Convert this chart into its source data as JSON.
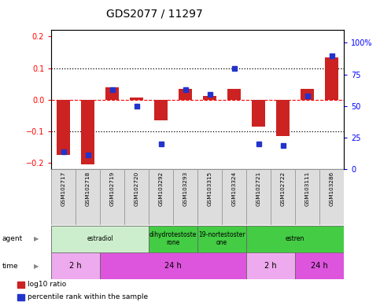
{
  "title": "GDS2077 / 11297",
  "samples": [
    "GSM102717",
    "GSM102718",
    "GSM102719",
    "GSM102720",
    "GSM103292",
    "GSM103293",
    "GSM103315",
    "GSM103324",
    "GSM102721",
    "GSM102722",
    "GSM103111",
    "GSM103286"
  ],
  "log10_ratio": [
    -0.175,
    -0.205,
    0.038,
    0.008,
    -0.065,
    0.033,
    0.013,
    0.033,
    -0.085,
    -0.115,
    0.035,
    0.135
  ],
  "percentile_rank": [
    14,
    11,
    63,
    50,
    20,
    63,
    59,
    80,
    20,
    19,
    58,
    90
  ],
  "bar_color": "#cc2222",
  "dot_color": "#2233cc",
  "ylim_left": [
    -0.22,
    0.22
  ],
  "ylim_right": [
    0,
    110
  ],
  "yticks_left": [
    -0.2,
    -0.1,
    0.0,
    0.1,
    0.2
  ],
  "yticks_right": [
    0,
    25,
    50,
    75,
    100
  ],
  "ytick_labels_right": [
    "0",
    "25",
    "50",
    "75",
    "100%"
  ],
  "agent_labels": [
    {
      "label": "estradiol",
      "start": 0,
      "end": 4,
      "color": "#cceecc"
    },
    {
      "label": "dihydrotestoste\nrone",
      "start": 4,
      "end": 6,
      "color": "#44cc44"
    },
    {
      "label": "19-nortestoster\none",
      "start": 6,
      "end": 8,
      "color": "#44cc44"
    },
    {
      "label": "estren",
      "start": 8,
      "end": 12,
      "color": "#44cc44"
    }
  ],
  "time_labels": [
    {
      "label": "2 h",
      "start": 0,
      "end": 2,
      "color": "#eeaaee"
    },
    {
      "label": "24 h",
      "start": 2,
      "end": 8,
      "color": "#dd55dd"
    },
    {
      "label": "2 h",
      "start": 8,
      "end": 10,
      "color": "#eeaaee"
    },
    {
      "label": "24 h",
      "start": 10,
      "end": 12,
      "color": "#dd55dd"
    }
  ],
  "legend_items": [
    {
      "color": "#cc2222",
      "label": "log10 ratio"
    },
    {
      "color": "#2233cc",
      "label": "percentile rank within the sample"
    }
  ],
  "sample_box_color": "#dddddd",
  "sample_box_edge": "#999999",
  "background_color": "#ffffff"
}
